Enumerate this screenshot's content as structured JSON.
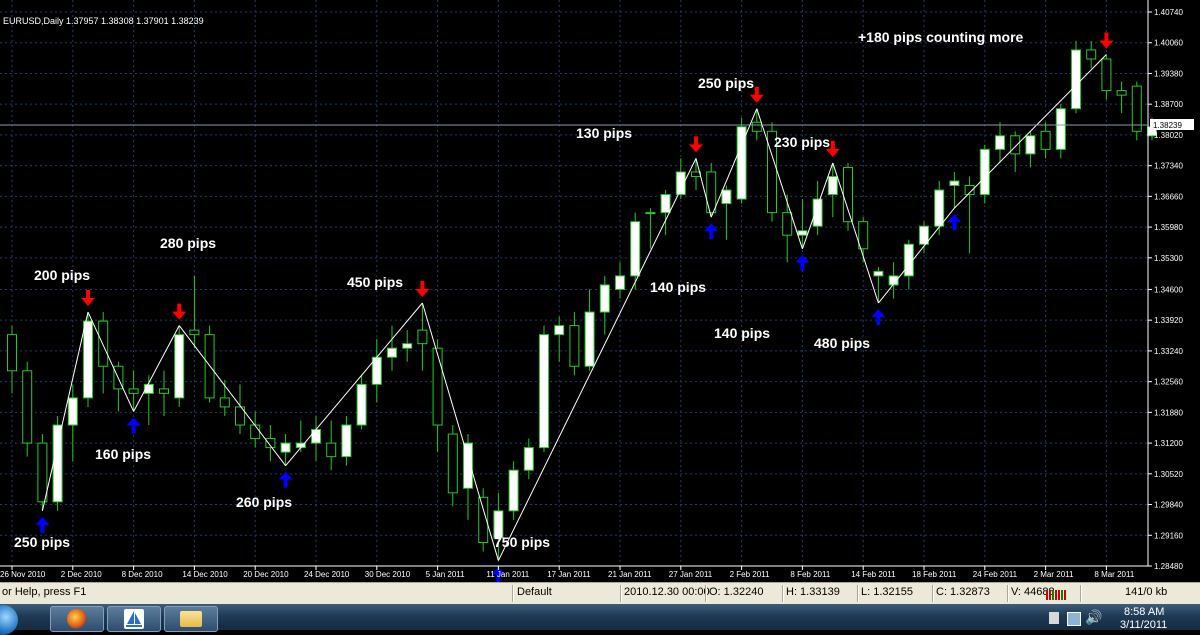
{
  "chart_header": "EURUSD,Daily  1.37957 1.38308 1.37901 1.38239",
  "colors": {
    "background": "#000000",
    "grid": "#1e3a6e",
    "bull_candle": "#ffffff",
    "wick": "#22cc22",
    "trendline": "#ffffff",
    "buy_arrow": "#0000ff",
    "sell_arrow": "#ff0000",
    "label": "#ffffff"
  },
  "chart_data": {
    "type": "candlestick",
    "symbol": "EURUSD",
    "timeframe": "Daily",
    "header_values": {
      "open": 1.37957,
      "high": 1.38308,
      "low": 1.37901,
      "close": 1.38239
    },
    "current_price": "1.38239",
    "ylim": [
      1.2848,
      1.4074
    ],
    "y_ticks": [
      "1.40740",
      "1.40060",
      "1.39380",
      "1.38700",
      "1.38020",
      "1.37340",
      "1.36660",
      "1.35980",
      "1.35300",
      "1.34600",
      "1.33920",
      "1.33240",
      "1.32560",
      "1.31880",
      "1.31200",
      "1.30520",
      "1.29840",
      "1.29160",
      "1.28480"
    ],
    "x_ticks": [
      "26 Nov 2010",
      "2 Dec 2010",
      "8 Dec 2010",
      "14 Dec 2010",
      "20 Dec 2010",
      "24 Dec 2010",
      "30 Dec 2010",
      "5 Jan 2011",
      "11 Jan 2011",
      "17 Jan 2011",
      "21 Jan 2011",
      "27 Jan 2011",
      "2 Feb 2011",
      "8 Feb 2011",
      "14 Feb 2011",
      "18 Feb 2011",
      "24 Feb 2011",
      "2 Mar 2011",
      "8 Mar 2011"
    ],
    "candles": [
      {
        "o": 1.336,
        "h": 1.338,
        "l": 1.323,
        "c": 1.328
      },
      {
        "o": 1.328,
        "h": 1.33,
        "l": 1.309,
        "c": 1.312
      },
      {
        "o": 1.312,
        "h": 1.314,
        "l": 1.297,
        "c": 1.299
      },
      {
        "o": 1.299,
        "h": 1.318,
        "l": 1.297,
        "c": 1.316
      },
      {
        "o": 1.316,
        "h": 1.325,
        "l": 1.308,
        "c": 1.322
      },
      {
        "o": 1.322,
        "h": 1.341,
        "l": 1.32,
        "c": 1.339
      },
      {
        "o": 1.339,
        "h": 1.341,
        "l": 1.323,
        "c": 1.329
      },
      {
        "o": 1.329,
        "h": 1.33,
        "l": 1.319,
        "c": 1.324
      },
      {
        "o": 1.324,
        "h": 1.328,
        "l": 1.319,
        "c": 1.323
      },
      {
        "o": 1.323,
        "h": 1.327,
        "l": 1.316,
        "c": 1.325
      },
      {
        "o": 1.324,
        "h": 1.328,
        "l": 1.318,
        "c": 1.323
      },
      {
        "o": 1.322,
        "h": 1.338,
        "l": 1.32,
        "c": 1.336
      },
      {
        "o": 1.337,
        "h": 1.349,
        "l": 1.333,
        "c": 1.336
      },
      {
        "o": 1.336,
        "h": 1.338,
        "l": 1.321,
        "c": 1.322
      },
      {
        "o": 1.322,
        "h": 1.326,
        "l": 1.318,
        "c": 1.32
      },
      {
        "o": 1.32,
        "h": 1.325,
        "l": 1.314,
        "c": 1.316
      },
      {
        "o": 1.316,
        "h": 1.319,
        "l": 1.311,
        "c": 1.313
      },
      {
        "o": 1.313,
        "h": 1.316,
        "l": 1.308,
        "c": 1.311
      },
      {
        "o": 1.31,
        "h": 1.314,
        "l": 1.307,
        "c": 1.312
      },
      {
        "o": 1.311,
        "h": 1.317,
        "l": 1.31,
        "c": 1.312
      },
      {
        "o": 1.312,
        "h": 1.318,
        "l": 1.308,
        "c": 1.315
      },
      {
        "o": 1.312,
        "h": 1.317,
        "l": 1.306,
        "c": 1.309
      },
      {
        "o": 1.309,
        "h": 1.318,
        "l": 1.307,
        "c": 1.316
      },
      {
        "o": 1.316,
        "h": 1.327,
        "l": 1.315,
        "c": 1.325
      },
      {
        "o": 1.325,
        "h": 1.335,
        "l": 1.321,
        "c": 1.331
      },
      {
        "o": 1.331,
        "h": 1.338,
        "l": 1.328,
        "c": 1.333
      },
      {
        "o": 1.333,
        "h": 1.337,
        "l": 1.33,
        "c": 1.334
      },
      {
        "o": 1.337,
        "h": 1.343,
        "l": 1.328,
        "c": 1.334
      },
      {
        "o": 1.333,
        "h": 1.335,
        "l": 1.31,
        "c": 1.316
      },
      {
        "o": 1.314,
        "h": 1.316,
        "l": 1.298,
        "c": 1.301
      },
      {
        "o": 1.302,
        "h": 1.314,
        "l": 1.295,
        "c": 1.312
      },
      {
        "o": 1.3,
        "h": 1.302,
        "l": 1.288,
        "c": 1.29
      },
      {
        "o": 1.291,
        "h": 1.301,
        "l": 1.286,
        "c": 1.297
      },
      {
        "o": 1.297,
        "h": 1.308,
        "l": 1.295,
        "c": 1.306
      },
      {
        "o": 1.306,
        "h": 1.313,
        "l": 1.304,
        "c": 1.311
      },
      {
        "o": 1.311,
        "h": 1.338,
        "l": 1.31,
        "c": 1.336
      },
      {
        "o": 1.336,
        "h": 1.34,
        "l": 1.33,
        "c": 1.338
      },
      {
        "o": 1.338,
        "h": 1.341,
        "l": 1.327,
        "c": 1.329
      },
      {
        "o": 1.329,
        "h": 1.346,
        "l": 1.328,
        "c": 1.341
      },
      {
        "o": 1.341,
        "h": 1.349,
        "l": 1.336,
        "c": 1.347
      },
      {
        "o": 1.346,
        "h": 1.352,
        "l": 1.344,
        "c": 1.349
      },
      {
        "o": 1.349,
        "h": 1.363,
        "l": 1.346,
        "c": 1.361
      },
      {
        "o": 1.363,
        "h": 1.364,
        "l": 1.355,
        "c": 1.363
      },
      {
        "o": 1.363,
        "h": 1.368,
        "l": 1.358,
        "c": 1.367
      },
      {
        "o": 1.367,
        "h": 1.375,
        "l": 1.366,
        "c": 1.372
      },
      {
        "o": 1.372,
        "h": 1.375,
        "l": 1.368,
        "c": 1.371
      },
      {
        "o": 1.372,
        "h": 1.374,
        "l": 1.362,
        "c": 1.363
      },
      {
        "o": 1.365,
        "h": 1.369,
        "l": 1.357,
        "c": 1.368
      },
      {
        "o": 1.366,
        "h": 1.384,
        "l": 1.365,
        "c": 1.382
      },
      {
        "o": 1.383,
        "h": 1.386,
        "l": 1.379,
        "c": 1.381
      },
      {
        "o": 1.381,
        "h": 1.383,
        "l": 1.361,
        "c": 1.363
      },
      {
        "o": 1.363,
        "h": 1.367,
        "l": 1.352,
        "c": 1.358
      },
      {
        "o": 1.358,
        "h": 1.366,
        "l": 1.355,
        "c": 1.359
      },
      {
        "o": 1.36,
        "h": 1.37,
        "l": 1.358,
        "c": 1.366
      },
      {
        "o": 1.367,
        "h": 1.374,
        "l": 1.362,
        "c": 1.371
      },
      {
        "o": 1.373,
        "h": 1.374,
        "l": 1.359,
        "c": 1.361
      },
      {
        "o": 1.361,
        "h": 1.362,
        "l": 1.352,
        "c": 1.355
      },
      {
        "o": 1.349,
        "h": 1.351,
        "l": 1.343,
        "c": 1.35
      },
      {
        "o": 1.347,
        "h": 1.352,
        "l": 1.344,
        "c": 1.349
      },
      {
        "o": 1.349,
        "h": 1.357,
        "l": 1.346,
        "c": 1.356
      },
      {
        "o": 1.356,
        "h": 1.361,
        "l": 1.354,
        "c": 1.36
      },
      {
        "o": 1.36,
        "h": 1.37,
        "l": 1.358,
        "c": 1.368
      },
      {
        "o": 1.369,
        "h": 1.372,
        "l": 1.364,
        "c": 1.37
      },
      {
        "o": 1.369,
        "h": 1.371,
        "l": 1.354,
        "c": 1.367
      },
      {
        "o": 1.367,
        "h": 1.378,
        "l": 1.365,
        "c": 1.377
      },
      {
        "o": 1.377,
        "h": 1.383,
        "l": 1.374,
        "c": 1.38
      },
      {
        "o": 1.38,
        "h": 1.381,
        "l": 1.372,
        "c": 1.376
      },
      {
        "o": 1.376,
        "h": 1.381,
        "l": 1.373,
        "c": 1.38
      },
      {
        "o": 1.381,
        "h": 1.383,
        "l": 1.375,
        "c": 1.377
      },
      {
        "o": 1.377,
        "h": 1.387,
        "l": 1.375,
        "c": 1.386
      },
      {
        "o": 1.386,
        "h": 1.401,
        "l": 1.385,
        "c": 1.399
      },
      {
        "o": 1.399,
        "h": 1.401,
        "l": 1.395,
        "c": 1.397
      },
      {
        "o": 1.397,
        "h": 1.398,
        "l": 1.388,
        "c": 1.39
      },
      {
        "o": 1.39,
        "h": 1.392,
        "l": 1.385,
        "c": 1.389
      },
      {
        "o": 1.391,
        "h": 1.392,
        "l": 1.379,
        "c": 1.381
      },
      {
        "o": 1.38,
        "h": 1.384,
        "l": 1.379,
        "c": 1.382
      }
    ],
    "signals": [
      {
        "index": 2,
        "type": "buy"
      },
      {
        "index": 5,
        "type": "sell"
      },
      {
        "index": 8,
        "type": "buy"
      },
      {
        "index": 11,
        "type": "sell"
      },
      {
        "index": 18,
        "type": "buy"
      },
      {
        "index": 27,
        "type": "sell"
      },
      {
        "index": 32,
        "type": "buy"
      },
      {
        "index": 45,
        "type": "sell"
      },
      {
        "index": 46,
        "type": "buy"
      },
      {
        "index": 49,
        "type": "sell"
      },
      {
        "index": 52,
        "type": "buy"
      },
      {
        "index": 54,
        "type": "sell"
      },
      {
        "index": 57,
        "type": "buy"
      },
      {
        "index": 62,
        "type": "buy"
      },
      {
        "index": 72,
        "type": "sell"
      }
    ],
    "annotations": [
      "250 pips",
      "200 pips",
      "160 pips",
      "280 pips",
      "260 pips",
      "450 pips",
      "750 pips",
      "130 pips",
      "140 pips",
      "250 pips",
      "140 pips",
      "230 pips",
      "480 pips",
      "+180 pips counting more"
    ]
  },
  "status_bar": {
    "help": "or Help, press F1",
    "profile": "Default",
    "datetime": "2010.12.30 00:00",
    "open": "O: 1.32240",
    "high": "H: 1.33139",
    "low": "L: 1.32155",
    "close": "C: 1.32873",
    "volume": "V: 44688",
    "traffic": "141/0 kb"
  },
  "taskbar": {
    "time": "8:58 AM",
    "date": "3/11/2011"
  }
}
